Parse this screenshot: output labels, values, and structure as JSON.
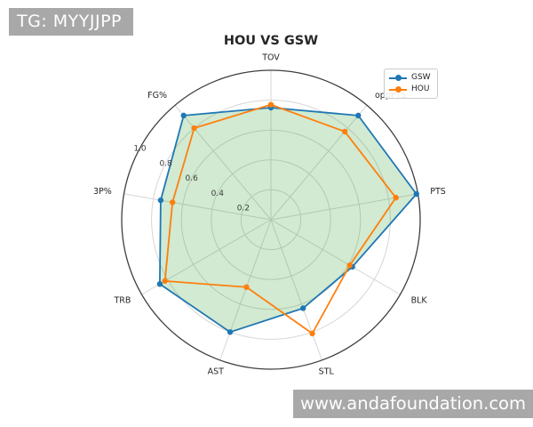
{
  "watermarks": {
    "top_left": "TG: MYYJJPP",
    "bottom_right": "www.andafoundation.com"
  },
  "chart_data": {
    "type": "radar",
    "title": "HOU VS GSW",
    "categories": [
      "TOV",
      "oppPTS",
      "PTS",
      "BLK",
      "STL",
      "AST",
      "TRB",
      "3P%",
      "FG%"
    ],
    "series": [
      {
        "name": "GSW",
        "color": "#1f77b4",
        "fill": "rgba(44,160,44,0.22)",
        "values": [
          0.75,
          0.91,
          0.99,
          0.63,
          0.63,
          0.8,
          0.86,
          0.75,
          0.91
        ]
      },
      {
        "name": "HOU",
        "color": "#ff7f0e",
        "fill": "none",
        "values": [
          0.77,
          0.77,
          0.85,
          0.61,
          0.81,
          0.48,
          0.82,
          0.67,
          0.8
        ]
      }
    ],
    "radial_ticks": [
      0.2,
      0.4,
      0.6,
      0.8,
      1.0
    ],
    "rmax": 1.0,
    "rlabel_angle_deg": 150,
    "grid": true,
    "legend_position": "upper right",
    "colors": {
      "outer_ring": "#3f3f3f",
      "grid_line": "#d6d6d6",
      "axis_label": "#262626",
      "tick_label": "#3a3a3a",
      "watermark_bg": "#a8a8a8",
      "watermark_text": "#ffffff"
    }
  }
}
